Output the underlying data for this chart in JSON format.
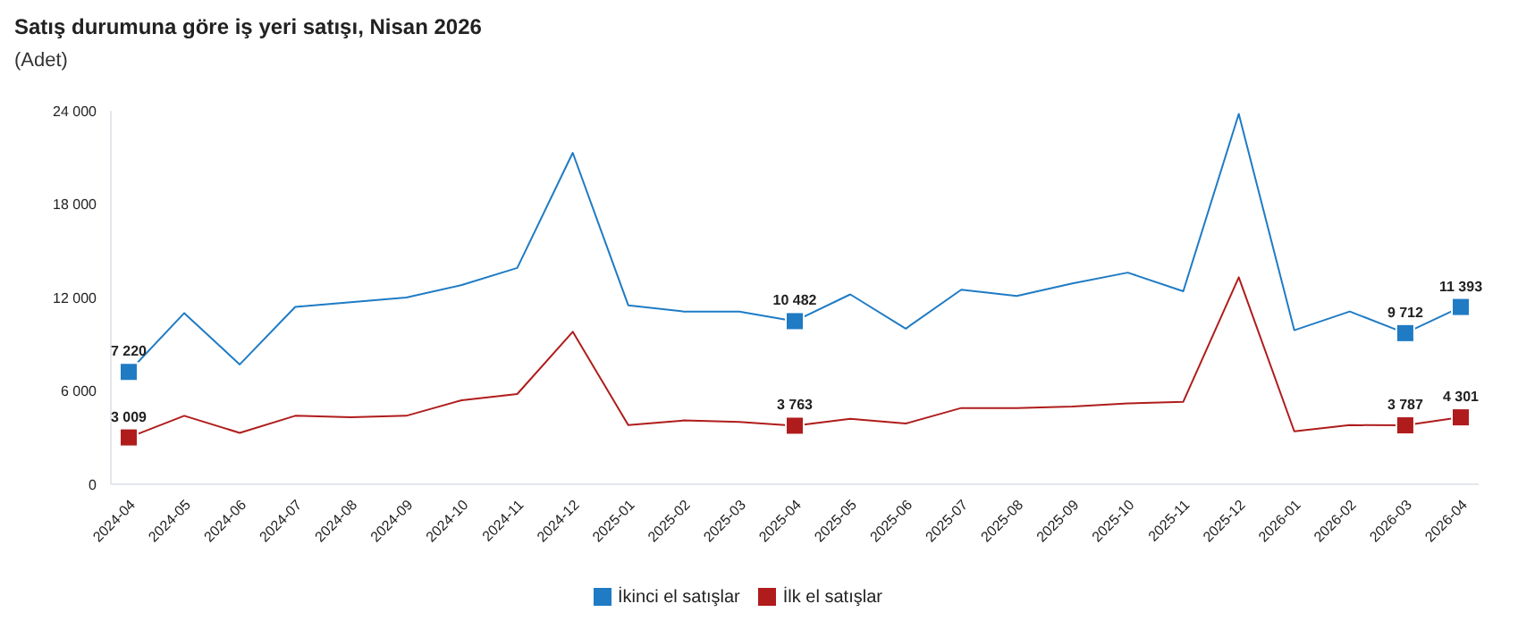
{
  "chart_data": {
    "type": "line",
    "title": "Satış durumuna göre iş yeri satışı, Nisan 2026",
    "subtitle": "(Adet)",
    "categories": [
      "2024-04",
      "2024-05",
      "2024-06",
      "2024-07",
      "2024-08",
      "2024-09",
      "2024-10",
      "2024-11",
      "2024-12",
      "2025-01",
      "2025-02",
      "2025-03",
      "2025-04",
      "2025-05",
      "2025-06",
      "2025-07",
      "2025-08",
      "2025-09",
      "2025-10",
      "2025-11",
      "2025-12",
      "2026-01",
      "2026-02",
      "2026-03",
      "2026-04"
    ],
    "series": [
      {
        "name": "İlk el satışlar",
        "color": "#b01c1c",
        "values": [
          3009,
          4400,
          3300,
          4400,
          4300,
          4400,
          5400,
          5800,
          9800,
          3800,
          4100,
          4000,
          3763,
          4200,
          3900,
          4900,
          4900,
          5000,
          5200,
          5300,
          13300,
          3400,
          3800,
          3787,
          4301
        ],
        "value_labels": [
          "3 009",
          null,
          null,
          null,
          null,
          null,
          null,
          null,
          null,
          null,
          null,
          null,
          "3 763",
          null,
          null,
          null,
          null,
          null,
          null,
          null,
          null,
          null,
          null,
          "3 787",
          "4 301"
        ]
      },
      {
        "name": "İkinci el satışlar",
        "color": "#1f7bc4",
        "values": [
          7220,
          11000,
          7700,
          11400,
          11700,
          12000,
          12800,
          13900,
          21300,
          11500,
          11100,
          11100,
          10482,
          12200,
          10000,
          12500,
          12100,
          12900,
          13600,
          12400,
          23800,
          9900,
          11100,
          9712,
          11393
        ],
        "value_labels": [
          "7 220",
          null,
          null,
          null,
          null,
          null,
          null,
          null,
          null,
          null,
          null,
          null,
          "10 482",
          null,
          null,
          null,
          null,
          null,
          null,
          null,
          null,
          null,
          null,
          "9 712",
          "11 393"
        ]
      }
    ],
    "ylim": [
      0,
      24000
    ],
    "yticks": [
      {
        "value": 0,
        "label": "0"
      },
      {
        "value": 6000,
        "label": "6 000"
      },
      {
        "value": 12000,
        "label": "12 000"
      },
      {
        "value": 18000,
        "label": "18 000"
      },
      {
        "value": 24000,
        "label": "24 000"
      }
    ],
    "legend": "bottom",
    "line_style": "solid"
  }
}
